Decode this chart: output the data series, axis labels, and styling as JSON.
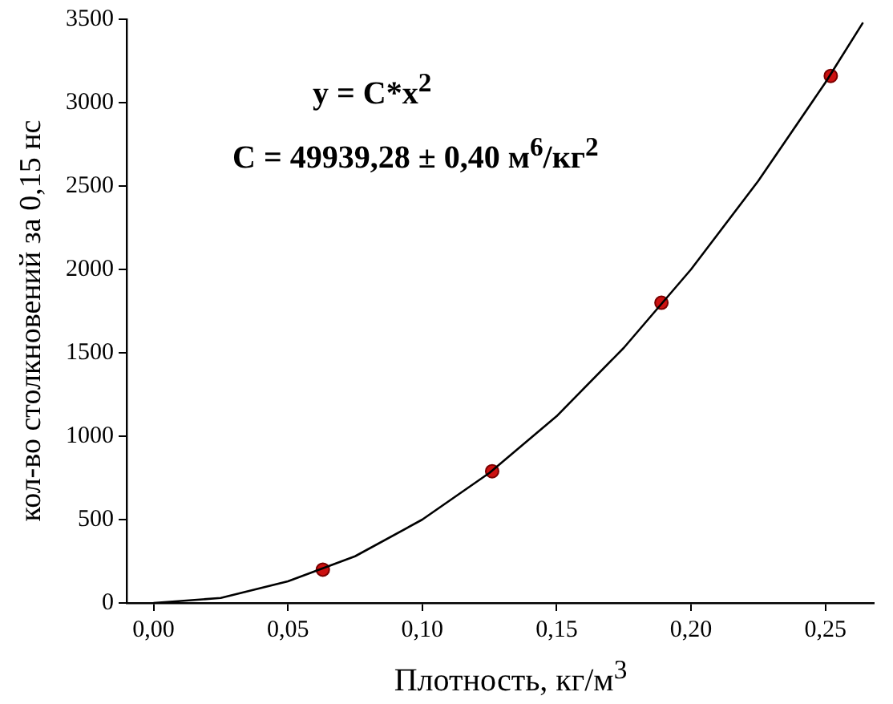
{
  "chart_data": {
    "type": "scatter",
    "xlabel": "Плотность, кг/м$^{3}$",
    "ylabel": "кол-во столкновений за 0,15 нс",
    "annotations": [
      "y = C*x$^{2}$",
      "C = 49939,28 ± 0,40 м$^{6}$/кг$^{2}$"
    ],
    "xlim": [
      -0.01,
      0.268
    ],
    "xticks": [
      {
        "value": 0,
        "label": "0,00"
      },
      {
        "value": 0.05,
        "label": "0,05"
      },
      {
        "value": 0.1,
        "label": "0,10"
      },
      {
        "value": 0.15,
        "label": "0,15"
      },
      {
        "value": 0.2,
        "label": "0,20"
      },
      {
        "value": 0.25,
        "label": "0,25"
      }
    ],
    "ylim": [
      0,
      3500
    ],
    "yticks": [
      0,
      500,
      1000,
      1500,
      2000,
      2500,
      3000,
      3500
    ],
    "grid": false,
    "series": [
      {
        "type": "line",
        "color": "#000000",
        "marker": "none",
        "x": [
          0,
          0.025,
          0.05,
          0.075,
          0.1,
          0.125,
          0.15,
          0.175,
          0.2,
          0.225,
          0.25,
          0.264
        ],
        "values": [
          0,
          30,
          130,
          280,
          500,
          780,
          1120,
          1530,
          2000,
          2530,
          3120,
          3480
        ]
      },
      {
        "color": "#cc1010",
        "marker": "circle",
        "x": [
          0.063,
          0.126,
          0.189,
          0.252
        ],
        "values": [
          200,
          790,
          1800,
          3160
        ]
      }
    ]
  }
}
